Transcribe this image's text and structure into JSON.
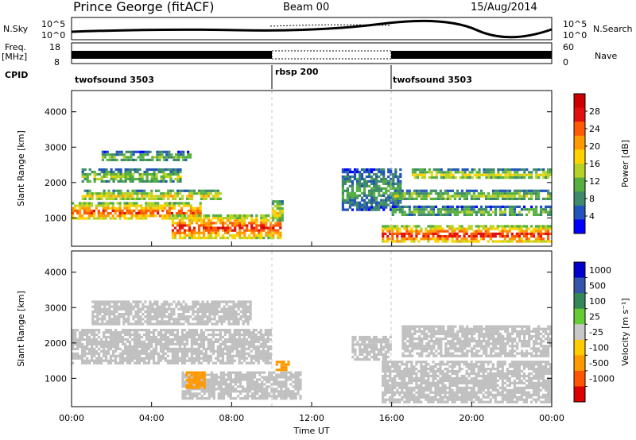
{
  "header": {
    "site": "Prince George (fitACF)",
    "beam": "Beam 00",
    "date": "15/Aug/2014"
  },
  "noise_panel": {
    "left_label": "N.Sky",
    "left_ticks": [
      "10^5",
      "10^0"
    ],
    "right_ticks": [
      "10^5",
      "10^0"
    ],
    "right_label": "N.Search"
  },
  "freq_panel": {
    "left_label_top": "Freq.",
    "left_label_unit": "[MHz]",
    "left_ticks": [
      "18",
      "8"
    ],
    "right_ticks": [
      "60",
      "0"
    ],
    "right_label": "Nave"
  },
  "cpid": {
    "label": "CPID",
    "segments": [
      {
        "name": "twofsound 3503",
        "start": "00:00",
        "end": "10:00"
      },
      {
        "name": "rbsp 200",
        "start": "10:00",
        "end": "16:00"
      },
      {
        "name": "twofsound 3503",
        "start": "16:00",
        "end": "24:00"
      }
    ]
  },
  "colors": {
    "power_scale": [
      "#0000ff",
      "#2255bb",
      "#3f8a6a",
      "#55b040",
      "#b7d226",
      "#ffd200",
      "#ff9a00",
      "#ff5a00",
      "#e01010",
      "#cc0000"
    ],
    "velocity_scale": [
      "#0000cc",
      "#3355aa",
      "#338855",
      "#66cc33",
      "#c8c8c8",
      "#ffcc00",
      "#ff9900",
      "#ff5500",
      "#dd0000"
    ],
    "ground_scatter": "#c0c0c0"
  },
  "chart_data": [
    {
      "type": "heatmap",
      "panel": "power",
      "ylabel": "Slant Range [km]",
      "y_ticks": [
        "1000",
        "2000",
        "3000",
        "4000"
      ],
      "ylim": [
        200,
        4600
      ],
      "xlim_hours": [
        0,
        24
      ],
      "colorbar_label": "Power [dB]",
      "colorbar_ticks": [
        "4",
        "8",
        "12",
        "16",
        "20",
        "24",
        "28"
      ],
      "colorbar_range": [
        0,
        32
      ],
      "echo_bands": [
        {
          "t0": 0.0,
          "t1": 6.5,
          "r0": 950,
          "r1": 1450,
          "power": 26
        },
        {
          "t0": 0.5,
          "t1": 7.5,
          "r0": 1500,
          "r1": 1800,
          "power": 18
        },
        {
          "t0": 0.5,
          "t1": 5.5,
          "r0": 2000,
          "r1": 2400,
          "power": 14
        },
        {
          "t0": 1.5,
          "t1": 6.0,
          "r0": 2600,
          "r1": 2900,
          "power": 12
        },
        {
          "t0": 5.0,
          "t1": 10.5,
          "r0": 400,
          "r1": 1100,
          "power": 27
        },
        {
          "t0": 10.0,
          "t1": 10.6,
          "r0": 900,
          "r1": 1500,
          "power": 18
        },
        {
          "t0": 13.5,
          "t1": 16.5,
          "r0": 1200,
          "r1": 2400,
          "power": 10
        },
        {
          "t0": 15.5,
          "t1": 24.0,
          "r0": 300,
          "r1": 800,
          "power": 28
        },
        {
          "t0": 16.0,
          "t1": 24.0,
          "r0": 1050,
          "r1": 1350,
          "power": 12
        },
        {
          "t0": 16.0,
          "t1": 24.0,
          "r0": 1500,
          "r1": 1800,
          "power": 14
        },
        {
          "t0": 17.0,
          "t1": 24.0,
          "r0": 2100,
          "r1": 2400,
          "power": 16
        }
      ]
    },
    {
      "type": "heatmap",
      "panel": "velocity",
      "ylabel": "Slant Range [km]",
      "y_ticks": [
        "1000",
        "2000",
        "3000",
        "4000"
      ],
      "ylim": [
        200,
        4600
      ],
      "xlim_hours": [
        0,
        24
      ],
      "xlabel": "Time UT",
      "x_ticks": [
        "00:00",
        "04:00",
        "08:00",
        "12:00",
        "16:00",
        "20:00",
        "00:00"
      ],
      "colorbar_label": "Velocity [m s⁻¹]",
      "colorbar_ticks": [
        "1000",
        "500",
        "100",
        "25",
        "-25",
        "-100",
        "-500",
        "-1000"
      ],
      "echo_bands": [
        {
          "t0": 0.0,
          "t1": 10.0,
          "r0": 1400,
          "r1": 2400,
          "velocity": 0
        },
        {
          "t0": 1.0,
          "t1": 9.0,
          "r0": 2500,
          "r1": 3200,
          "velocity": 0
        },
        {
          "t0": 5.5,
          "t1": 11.5,
          "r0": 400,
          "r1": 1200,
          "velocity": 0
        },
        {
          "t0": 5.7,
          "t1": 6.7,
          "r0": 700,
          "r1": 1200,
          "velocity": -120
        },
        {
          "t0": 10.2,
          "t1": 10.9,
          "r0": 1200,
          "r1": 1500,
          "velocity": -300
        },
        {
          "t0": 14.0,
          "t1": 16.0,
          "r0": 1500,
          "r1": 2200,
          "velocity": 0
        },
        {
          "t0": 15.5,
          "t1": 24.0,
          "r0": 300,
          "r1": 1500,
          "velocity": 0
        },
        {
          "t0": 16.5,
          "t1": 24.0,
          "r0": 1600,
          "r1": 2500,
          "velocity": 0
        }
      ]
    }
  ]
}
